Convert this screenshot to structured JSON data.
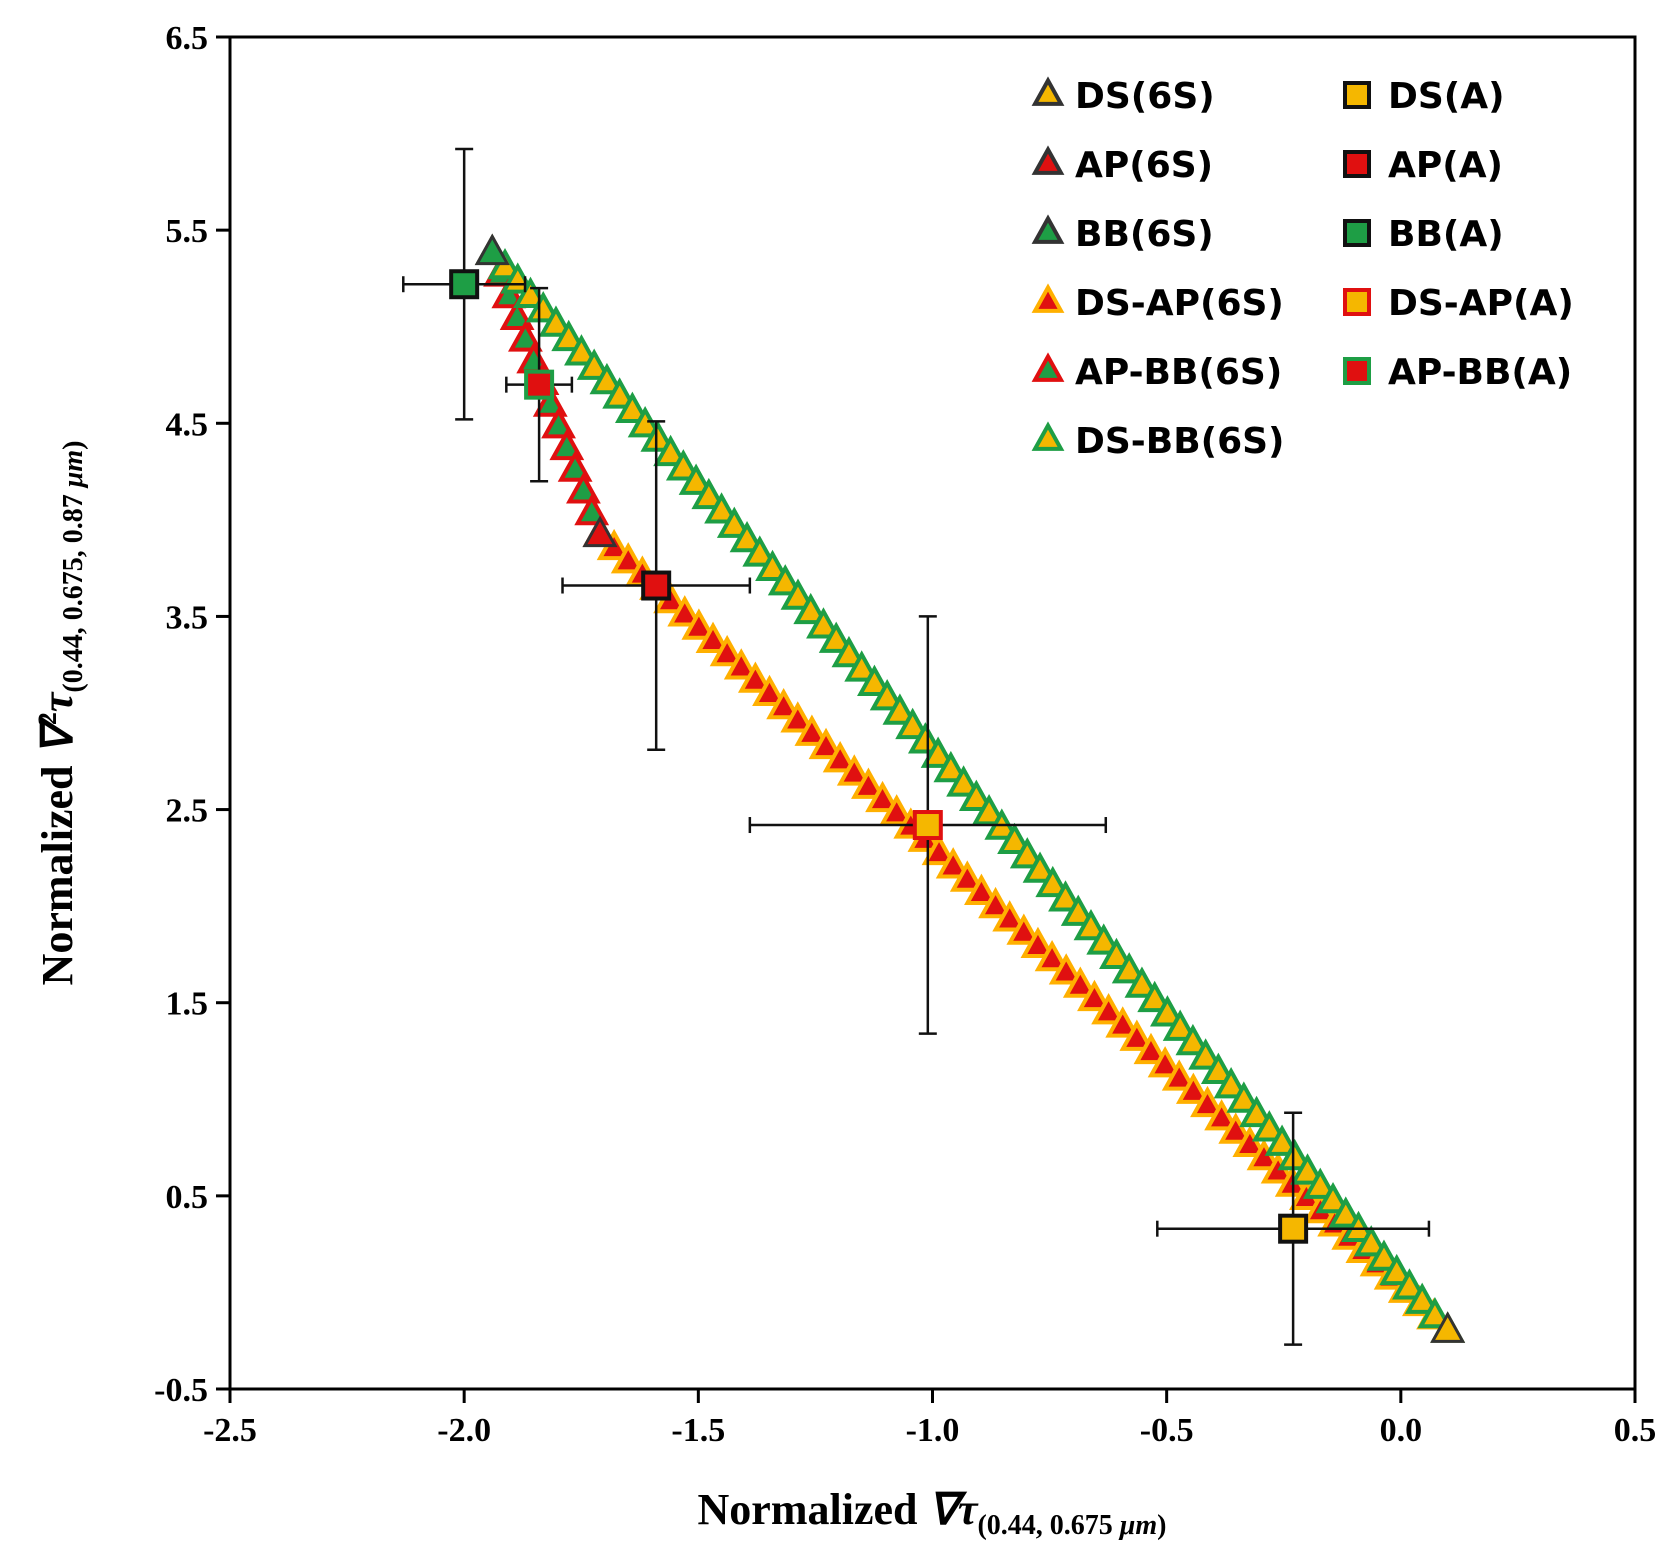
{
  "chart_data": {
    "type": "scatter",
    "title": "",
    "xlabel": {
      "prefix": "Normalized ",
      "symbol": "∇τ",
      "subscript": "(0.44, 0.675 ",
      "unit": "μm",
      "close": ")"
    },
    "ylabel": {
      "prefix": "Normalized ",
      "symbol": "∇",
      "power": "2",
      "symbol2": "τ",
      "subscript": "(0.44, 0.675, 0.87 ",
      "unit": "μm",
      "close": ")"
    },
    "xlim": [
      -2.5,
      0.5
    ],
    "ylim": [
      -0.5,
      6.5
    ],
    "x_ticks": [
      "-2.5",
      "-2.0",
      "-1.5",
      "-1.0",
      "-0.5",
      "0.0",
      "0.5"
    ],
    "y_ticks": [
      "-0.5",
      "0.5",
      "1.5",
      "2.5",
      "3.5",
      "4.5",
      "5.5",
      "6.5"
    ],
    "grid": false,
    "legend_position": "top-right",
    "legend": [
      {
        "label": "DS(6S)",
        "marker": "triangle",
        "fill": "#F5B700",
        "edge": "#333333"
      },
      {
        "label": "AP(6S)",
        "marker": "triangle",
        "fill": "#E01010",
        "edge": "#333333"
      },
      {
        "label": "BB(6S)",
        "marker": "triangle",
        "fill": "#1E9E45",
        "edge": "#333333"
      },
      {
        "label": "DS-AP(6S)",
        "marker": "triangle",
        "fill": "#E01010",
        "edge": "#FFB000"
      },
      {
        "label": "AP-BB(6S)",
        "marker": "triangle",
        "fill": "#1E9E45",
        "edge": "#E01010"
      },
      {
        "label": "DS-BB(6S)",
        "marker": "triangle",
        "fill": "#F5B700",
        "edge": "#1E9E45"
      },
      {
        "label": "DS(A)",
        "marker": "square",
        "fill": "#F5B700",
        "edge": "#111111"
      },
      {
        "label": "AP(A)",
        "marker": "square",
        "fill": "#E01010",
        "edge": "#111111"
      },
      {
        "label": "BB(A)",
        "marker": "square",
        "fill": "#1E9E45",
        "edge": "#111111"
      },
      {
        "label": "DS-AP(A)",
        "marker": "square",
        "fill": "#F5B700",
        "edge": "#E01010"
      },
      {
        "label": "AP-BB(A)",
        "marker": "square",
        "fill": "#E01010",
        "edge": "#1E9E45"
      }
    ],
    "series": [
      {
        "name": "DS(6S)",
        "marker": "triangle",
        "fill": "#F5B700",
        "edge": "#333333",
        "points": [
          [
            0.1,
            -0.2
          ]
        ]
      },
      {
        "name": "AP(6S)",
        "marker": "triangle",
        "fill": "#E01010",
        "edge": "#333333",
        "points": [
          [
            -1.71,
            3.92
          ]
        ]
      },
      {
        "name": "BB(6S)",
        "marker": "triangle",
        "fill": "#1E9E45",
        "edge": "#333333",
        "points": [
          [
            -1.94,
            5.38
          ]
        ]
      },
      {
        "name": "DS-AP(6S)",
        "marker": "triangle",
        "fill": "#E01010",
        "edge": "#FFB000",
        "line": {
          "from": [
            -1.71,
            3.92
          ],
          "to": [
            0.1,
            -0.2
          ],
          "n": 60
        }
      },
      {
        "name": "AP-BB(6S)",
        "marker": "triangle",
        "fill": "#1E9E45",
        "edge": "#E01010",
        "line": {
          "from": [
            -1.94,
            5.38
          ],
          "to": [
            -1.71,
            3.92
          ],
          "n": 13
        }
      },
      {
        "name": "DS-BB(6S)",
        "marker": "triangle",
        "fill": "#F5B700",
        "edge": "#1E9E45",
        "line": {
          "from": [
            -1.94,
            5.38
          ],
          "to": [
            0.1,
            -0.2
          ],
          "n": 75
        }
      },
      {
        "name": "DS(A)",
        "marker": "square",
        "fill": "#F5B700",
        "edge": "#111111",
        "points": [
          [
            -0.23,
            0.33
          ]
        ],
        "xerr": 0.29,
        "yerr": 0.6
      },
      {
        "name": "AP(A)",
        "marker": "square",
        "fill": "#E01010",
        "edge": "#111111",
        "points": [
          [
            -1.59,
            3.66
          ]
        ],
        "xerr": 0.2,
        "yerr": 0.85
      },
      {
        "name": "BB(A)",
        "marker": "square",
        "fill": "#1E9E45",
        "edge": "#111111",
        "points": [
          [
            -2.0,
            5.22
          ]
        ],
        "xerr": 0.13,
        "yerr": 0.7
      },
      {
        "name": "DS-AP(A)",
        "marker": "square",
        "fill": "#F5B700",
        "edge": "#E01010",
        "points": [
          [
            -1.01,
            2.42
          ]
        ],
        "xerr": 0.38,
        "yerr": 1.08
      },
      {
        "name": "AP-BB(A)",
        "marker": "square",
        "fill": "#E01010",
        "edge": "#1E9E45",
        "points": [
          [
            -1.84,
            4.7
          ]
        ],
        "xerr": 0.07,
        "yerr": 0.5
      }
    ]
  }
}
